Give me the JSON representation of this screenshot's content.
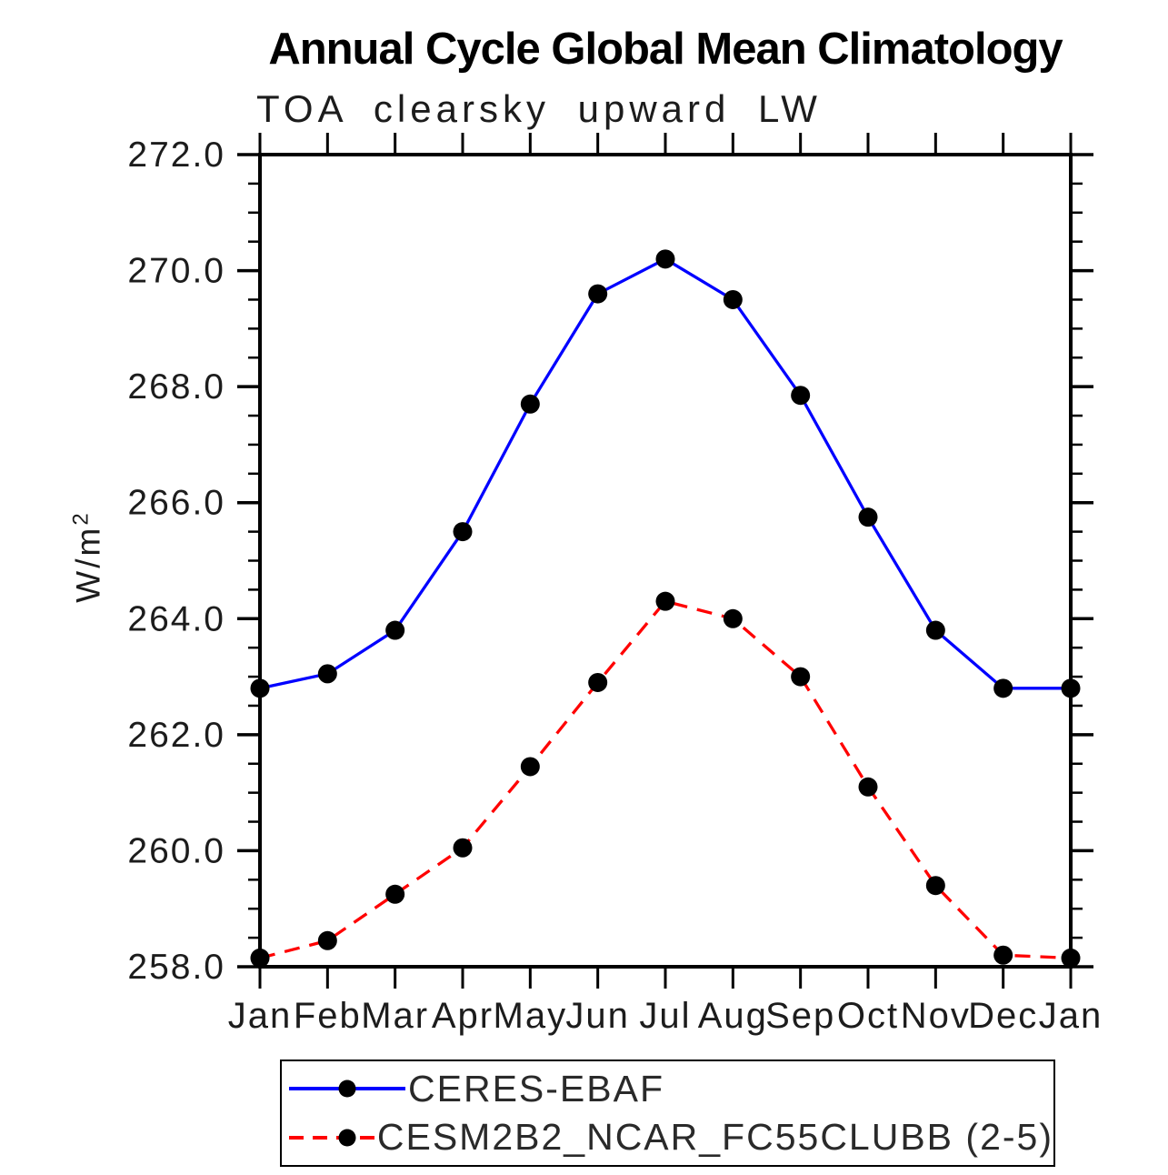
{
  "header": {
    "title": "Annual Cycle Global Mean Climatology",
    "subtitle": "TOA clearsky upward LW"
  },
  "y_axis": {
    "label_base": "W/m",
    "label_exponent": "2",
    "tick_labels": [
      "258.0",
      "260.0",
      "262.0",
      "264.0",
      "266.0",
      "268.0",
      "270.0",
      "272.0"
    ],
    "tick_values": [
      258.0,
      260.0,
      262.0,
      264.0,
      266.0,
      268.0,
      270.0,
      272.0
    ],
    "minor_step": 0.5
  },
  "colors": {
    "axis": "#000000",
    "ceres_line": "#0000ff",
    "cesm_line": "#ff0000",
    "marker": "#000000"
  },
  "chart_data": {
    "type": "line",
    "title": "Annual Cycle Global Mean Climatology",
    "subtitle": "TOA clearsky upward LW",
    "xlabel": "",
    "ylabel": "W/m^2",
    "categories": [
      "Jan",
      "Feb",
      "Mar",
      "Apr",
      "May",
      "Jun",
      "Jul",
      "Aug",
      "Sep",
      "Oct",
      "Nov",
      "Dec",
      "Jan"
    ],
    "ylim": [
      258.0,
      272.0
    ],
    "ytick_step": 2.0,
    "ytick_minor_step": 0.5,
    "grid": false,
    "legend_position": "bottom",
    "series": [
      {
        "name": "CERES-EBAF",
        "color": "#0000ff",
        "line_style": "solid",
        "marker": "filled-circle",
        "marker_color": "#000000",
        "values": [
          262.8,
          263.05,
          263.8,
          265.5,
          267.7,
          269.6,
          270.2,
          269.5,
          267.85,
          265.75,
          263.8,
          262.8,
          262.8
        ]
      },
      {
        "name": "CESM2B2_NCAR_FC55CLUBB (2-5)",
        "color": "#ff0000",
        "line_style": "dashed",
        "marker": "filled-circle",
        "marker_color": "#000000",
        "values": [
          258.15,
          258.45,
          259.25,
          260.05,
          261.45,
          262.9,
          264.3,
          264.0,
          263.0,
          261.1,
          259.4,
          258.2,
          258.15
        ]
      }
    ]
  }
}
